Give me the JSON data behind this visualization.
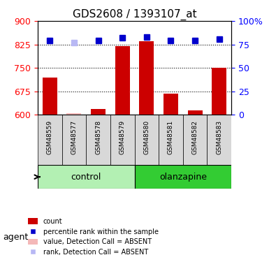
{
  "title": "GDS2608 / 1393107_at",
  "samples": [
    "GSM48559",
    "GSM48577",
    "GSM48578",
    "GSM48579",
    "GSM48580",
    "GSM48581",
    "GSM48582",
    "GSM48583"
  ],
  "groups": [
    "control",
    "control",
    "control",
    "control",
    "olanzapine",
    "olanzapine",
    "olanzapine",
    "olanzapine"
  ],
  "bar_values": [
    720,
    605,
    618,
    820,
    835,
    668,
    615,
    750
  ],
  "rank_values": [
    79,
    77,
    79,
    82,
    83,
    79,
    79,
    81
  ],
  "absent_mask": [
    false,
    true,
    false,
    false,
    false,
    false,
    false,
    false
  ],
  "bar_color": "#cc0000",
  "bar_absent_color": "#f4b8b8",
  "rank_color": "#0000cc",
  "rank_absent_color": "#b8b8f4",
  "ylim_left": [
    600,
    900
  ],
  "ylim_right": [
    0,
    100
  ],
  "yticks_left": [
    600,
    675,
    750,
    825,
    900
  ],
  "yticks_right": [
    0,
    25,
    50,
    75,
    100
  ],
  "ytick_labels_right": [
    "0",
    "25",
    "50",
    "75",
    "100%"
  ],
  "group_colors": {
    "control": "#b3f0b3",
    "olanzapine": "#33cc33"
  },
  "group_label_color": "black",
  "bar_width": 0.6,
  "legend_items": [
    {
      "color": "#cc0000",
      "label": "count",
      "absent": false
    },
    {
      "color": "#0000cc",
      "label": "percentile rank within the sample",
      "absent": false
    },
    {
      "color": "#f4b8b8",
      "label": "value, Detection Call = ABSENT",
      "absent": true
    },
    {
      "color": "#b8b8f4",
      "label": "rank, Detection Call = ABSENT",
      "absent": true
    }
  ]
}
